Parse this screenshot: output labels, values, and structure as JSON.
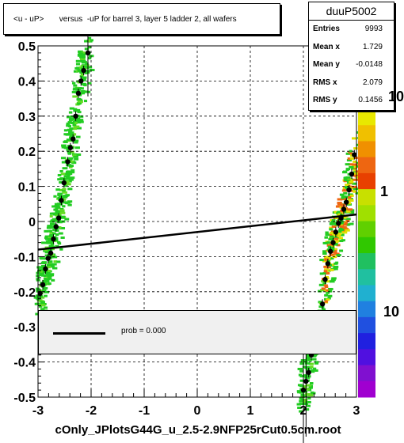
{
  "chart_data": {
    "type": "heatmap",
    "title": "<u - uP>       versus  -uP for barrel 3, layer 5 ladder 2, all wafers",
    "xlabel": "",
    "ylabel": "",
    "xlim": [
      -3,
      3
    ],
    "ylim": [
      -0.5,
      0.5
    ],
    "x_ticks": [
      "-3",
      "-2",
      "-1",
      "0",
      "1",
      "2",
      "3"
    ],
    "y_ticks": [
      "-0.5",
      "-0.4",
      "-0.3",
      "-0.2",
      "-0.1",
      "0",
      "0.1",
      "0.2",
      "0.3",
      "0.4",
      "0.5"
    ],
    "grid": true,
    "z_scale": "log",
    "z_tick_labels": [
      "10",
      "1",
      "10"
    ],
    "colors": {
      "low": "#22cc22",
      "mid": "#ee6611",
      "high": "#e0e000",
      "marker": "#000000",
      "fit": "#000000"
    },
    "profile_points": [
      {
        "x": -2.96,
        "y": -0.205
      },
      {
        "x": -2.91,
        "y": -0.18
      },
      {
        "x": -2.86,
        "y": -0.135
      },
      {
        "x": -2.81,
        "y": -0.105
      },
      {
        "x": -2.76,
        "y": -0.09
      },
      {
        "x": -2.71,
        "y": -0.05
      },
      {
        "x": -2.66,
        "y": -0.015
      },
      {
        "x": -2.61,
        "y": 0.01
      },
      {
        "x": -2.56,
        "y": 0.06
      },
      {
        "x": -2.51,
        "y": 0.11
      },
      {
        "x": -2.44,
        "y": 0.17
      },
      {
        "x": -2.39,
        "y": 0.21
      },
      {
        "x": -2.34,
        "y": 0.235
      },
      {
        "x": -2.29,
        "y": 0.3
      },
      {
        "x": -2.24,
        "y": 0.365
      },
      {
        "x": -2.19,
        "y": 0.4
      },
      {
        "x": -2.14,
        "y": 0.43
      },
      {
        "x": -2.06,
        "y": 0.48
      },
      {
        "x": 2.0,
        "y": -0.48
      },
      {
        "x": 2.05,
        "y": -0.455
      },
      {
        "x": 2.1,
        "y": -0.43
      },
      {
        "x": 2.15,
        "y": -0.38
      },
      {
        "x": 2.36,
        "y": -0.235
      },
      {
        "x": 2.41,
        "y": -0.165
      },
      {
        "x": 2.46,
        "y": -0.12
      },
      {
        "x": 2.51,
        "y": -0.085
      },
      {
        "x": 2.56,
        "y": -0.06
      },
      {
        "x": 2.61,
        "y": -0.03
      },
      {
        "x": 2.66,
        "y": -0.005
      },
      {
        "x": 2.71,
        "y": 0.01
      },
      {
        "x": 2.76,
        "y": 0.035
      },
      {
        "x": 2.81,
        "y": 0.055
      },
      {
        "x": 2.86,
        "y": 0.09
      },
      {
        "x": 2.91,
        "y": 0.135
      },
      {
        "x": 2.96,
        "y": 0.19
      }
    ],
    "fit_line": {
      "x": [
        -3,
        3
      ],
      "y": [
        -0.08,
        0.02
      ]
    },
    "stats_box": {
      "name": "duuP5002",
      "rows": [
        {
          "label": "Entries",
          "value": "9993"
        },
        {
          "label": "Mean x",
          "value": "1.729"
        },
        {
          "label": "Mean y",
          "value": "-0.0148"
        },
        {
          "label": "RMS x",
          "value": "2.079"
        },
        {
          "label": "RMS y",
          "value": "0.1456"
        }
      ]
    },
    "legend": {
      "placement": "bottom",
      "entry": "prob = 0.000"
    }
  },
  "footer": "cOnly_JPlotsG44G_u_2.5-2.9NFP25rCut0.5cm.root"
}
